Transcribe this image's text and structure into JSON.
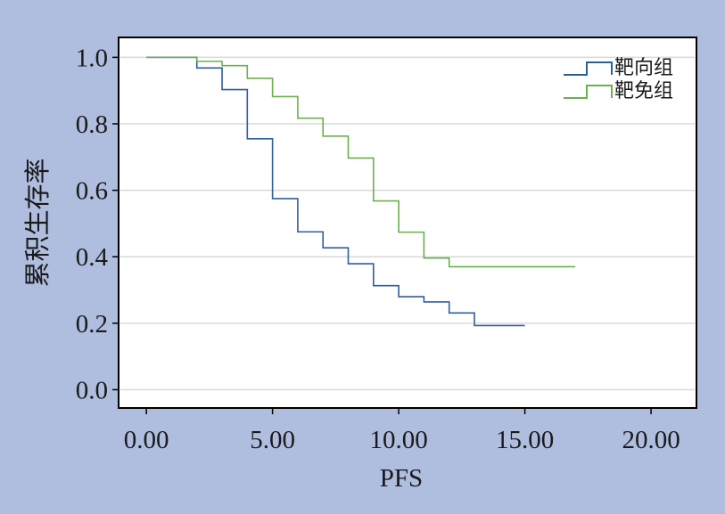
{
  "chart_data": {
    "type": "line",
    "step": true,
    "xlabel": "PFS",
    "ylabel": "累积生存率",
    "xlim": [
      -1.1,
      21.8
    ],
    "ylim": [
      -0.055,
      1.06
    ],
    "x_ticks": [
      0,
      5,
      10,
      15,
      20
    ],
    "x_tick_labels": [
      "0.00",
      "5.00",
      "10.00",
      "15.00",
      "20.00"
    ],
    "y_ticks": [
      0.0,
      0.2,
      0.4,
      0.6,
      0.8,
      1.0
    ],
    "y_tick_labels": [
      "0.0",
      "0.2",
      "0.4",
      "0.6",
      "0.8",
      "1.0"
    ],
    "grid": "horizontal",
    "legend_position": "top-right",
    "series": [
      {
        "name": "靶向组",
        "color": "#2d5f9b",
        "x": [
          0,
          2,
          3,
          4,
          5,
          6,
          7,
          8,
          9,
          10,
          11,
          12,
          13,
          15
        ],
        "y": [
          1.0,
          0.968,
          0.903,
          0.755,
          0.575,
          0.475,
          0.427,
          0.379,
          0.313,
          0.28,
          0.264,
          0.231,
          0.193,
          0.193
        ]
      },
      {
        "name": "靶免组",
        "color": "#6ab04c",
        "x": [
          0,
          2,
          3,
          4,
          5,
          6,
          7,
          8,
          9,
          10,
          11,
          12,
          17
        ],
        "y": [
          1.0,
          0.988,
          0.975,
          0.937,
          0.882,
          0.817,
          0.763,
          0.697,
          0.568,
          0.474,
          0.396,
          0.37,
          0.37
        ]
      }
    ]
  }
}
